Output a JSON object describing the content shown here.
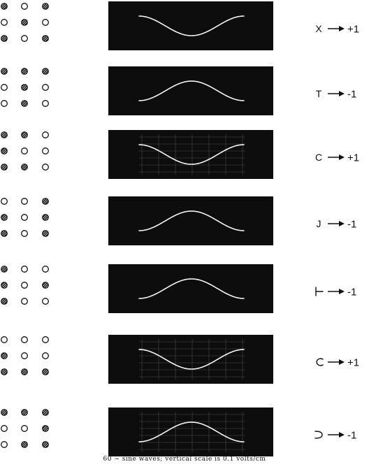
{
  "colors": {
    "paper": "#ffffff",
    "ink": "#111111",
    "screen": "#0d0d0d",
    "trace": "#f4f4f4",
    "graticule": "#5a5a5a"
  },
  "caption": "60 ~ sine waves; vertical scale is 0.1 volts/cm",
  "rows": [
    {
      "pattern": [
        "HOH",
        "OHO",
        "HOH"
      ],
      "graticule": false,
      "phase": "positive-peak-centered",
      "symbol": "X",
      "symbol_icon": "x-symbol",
      "arrow_icon": "right-arrow-icon",
      "result": "+1"
    },
    {
      "pattern": [
        "HHH",
        "OHO",
        "OHO"
      ],
      "graticule": false,
      "phase": "negative-peak-centered",
      "symbol": "T",
      "symbol_icon": "t-symbol",
      "arrow_icon": "right-arrow-icon",
      "result": "-1"
    },
    {
      "pattern": [
        "HHO",
        "HOO",
        "HHO"
      ],
      "graticule": true,
      "phase": "positive-peak-centered",
      "symbol": "C",
      "symbol_icon": "c-symbol",
      "arrow_icon": "right-arrow-icon",
      "result": "+1"
    },
    {
      "pattern": [
        "OOH",
        "HOH",
        "HOH"
      ],
      "graticule": false,
      "phase": "negative-peak-centered",
      "symbol": "J",
      "symbol_icon": "j-symbol",
      "arrow_icon": "right-arrow-icon",
      "result": "-1"
    },
    {
      "pattern": [
        "HOO",
        "HOH",
        "HOO"
      ],
      "graticule": false,
      "phase": "negative-peak-centered",
      "symbol": "",
      "symbol_icon": "left-t-bracket-symbol",
      "arrow_icon": "right-arrow-icon",
      "result": "-1"
    },
    {
      "pattern": [
        "OOO",
        "HOO",
        "HHH"
      ],
      "graticule": true,
      "phase": "positive-peak-centered",
      "symbol": "",
      "symbol_icon": "open-c-symbol",
      "arrow_icon": "right-arrow-icon",
      "result": "+1"
    },
    {
      "pattern": [
        "HHH",
        "OOH",
        "OHH"
      ],
      "graticule": true,
      "phase": "negative-peak-centered",
      "symbol": "",
      "symbol_icon": "reverse-c-symbol",
      "arrow_icon": "right-arrow-icon",
      "result": "-1"
    }
  ]
}
